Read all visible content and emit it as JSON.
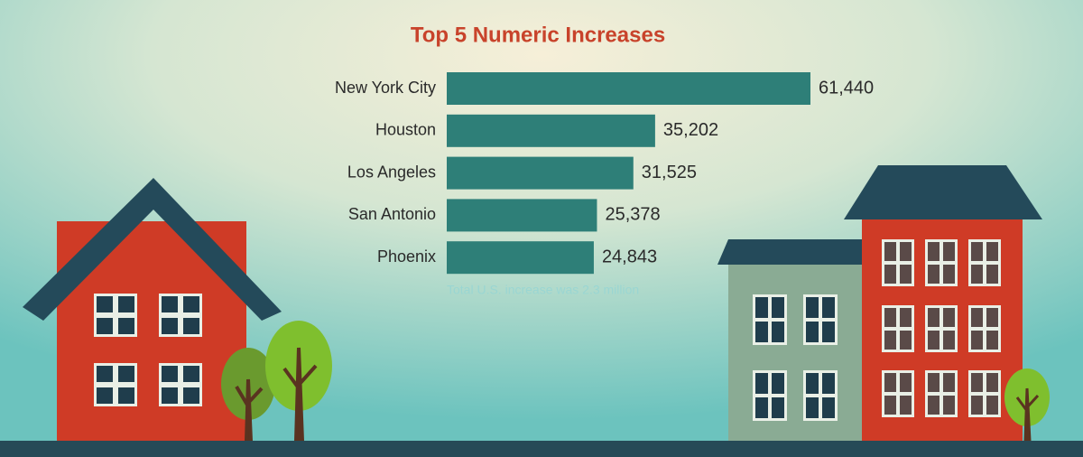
{
  "chart_data": {
    "type": "bar",
    "orientation": "horizontal",
    "title": "Top 5 Numeric Increases",
    "categories": [
      "New York City",
      "Houston",
      "Los Angeles",
      "San Antonio",
      "Phoenix"
    ],
    "values": [
      61440,
      35202,
      31525,
      25378,
      24843
    ],
    "value_labels": [
      "61,440",
      "35,202",
      "31,525",
      "25,378",
      "24,843"
    ],
    "color": "#2e7f78",
    "note": "Total U.S. increase was 2.3 million"
  }
}
